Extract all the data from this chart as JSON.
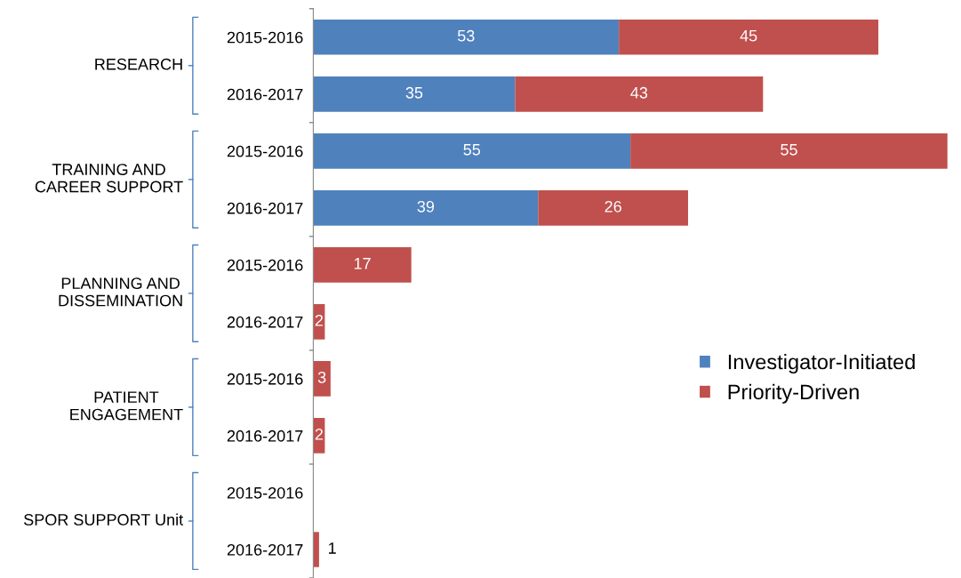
{
  "chart_data": {
    "type": "bar",
    "orientation": "horizontal",
    "stacked": true,
    "data_labels": true,
    "legend": "right",
    "categories": [
      "2015-2016",
      "2016-2017",
      "2015-2016",
      "2016-2017",
      "2015-2016",
      "2016-2017",
      "2015-2016",
      "2016-2017",
      "2015-2016",
      "2016-2017"
    ],
    "annotations": [
      "RESEARCH",
      "TRAINING AND CAREER SUPPORT",
      "PLANNING AND DISSEMINATION",
      "PATIENT ENGAGEMENT",
      "SPOR SUPPORT Unit"
    ],
    "series": [
      {
        "name": "Investigator-Initiated",
        "color": "#4f81bd",
        "values": [
          53,
          35,
          55,
          39,
          null,
          null,
          null,
          null,
          null,
          null
        ]
      },
      {
        "name": "Priority-Driven",
        "color": "#c0504d",
        "values": [
          45,
          43,
          55,
          26,
          17,
          2,
          3,
          2,
          null,
          1
        ]
      }
    ]
  }
}
